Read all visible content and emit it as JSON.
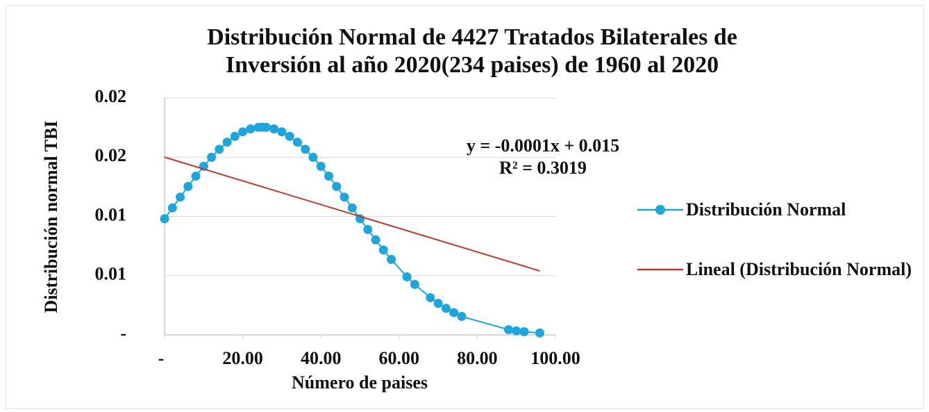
{
  "chart_data": {
    "type": "scatter",
    "title": [
      "Distribución Normal de 4427 Tratados Bilaterales de",
      "Inversión al año 2020(234 paises)  de 1960 al 2020"
    ],
    "xlabel": "Número de paises",
    "ylabel": "Distribución normal  TBI",
    "xlim": [
      0,
      100
    ],
    "ylim": [
      0,
      0.02
    ],
    "xticks": [
      {
        "value": 0,
        "label": "-"
      },
      {
        "value": 20,
        "label": "20.00"
      },
      {
        "value": 40,
        "label": "40.00"
      },
      {
        "value": 60,
        "label": "60.00"
      },
      {
        "value": 80,
        "label": "80.00"
      },
      {
        "value": 100,
        "label": "100.00"
      }
    ],
    "yticks": [
      {
        "value": 0,
        "label": "-"
      },
      {
        "value": 0.005,
        "label": "0.01"
      },
      {
        "value": 0.01,
        "label": "0.01"
      },
      {
        "value": 0.015,
        "label": "0.02"
      },
      {
        "value": 0.02,
        "label": "0.02"
      }
    ],
    "grid": true,
    "annotations": [
      "y = -0.0001x + 0.015",
      "R² = 0.3019"
    ],
    "series": [
      {
        "name": "Distribución Normal",
        "color": "#1ba6df",
        "x": [
          0,
          2,
          4,
          6,
          8,
          10,
          12,
          14,
          16,
          18,
          20,
          22,
          24,
          25,
          26,
          28,
          30,
          32,
          34,
          36,
          38,
          40,
          42,
          44,
          46,
          48,
          50,
          52,
          54,
          56,
          58,
          62,
          64,
          68,
          70,
          72,
          74,
          76,
          88,
          90,
          92,
          96
        ],
        "values": [
          0.0098,
          0.01072,
          0.01163,
          0.01253,
          0.0134,
          0.01423,
          0.01499,
          0.01567,
          0.01627,
          0.01676,
          0.01714,
          0.01739,
          0.01752,
          0.01754,
          0.01752,
          0.01739,
          0.01714,
          0.01676,
          0.01627,
          0.01567,
          0.01499,
          0.01423,
          0.0134,
          0.01253,
          0.01163,
          0.01072,
          0.0098,
          0.00889,
          0.00802,
          0.00717,
          0.00637,
          0.0049,
          0.00426,
          0.00314,
          0.00266,
          0.00224,
          0.00188,
          0.00156,
          0.00044,
          0.00034,
          0.00027,
          0.00016
        ]
      },
      {
        "name": "Lineal (Distribución Normal)",
        "color": "#c0392b",
        "x": [
          0,
          96
        ],
        "values": [
          0.015,
          0.0054
        ]
      }
    ]
  }
}
